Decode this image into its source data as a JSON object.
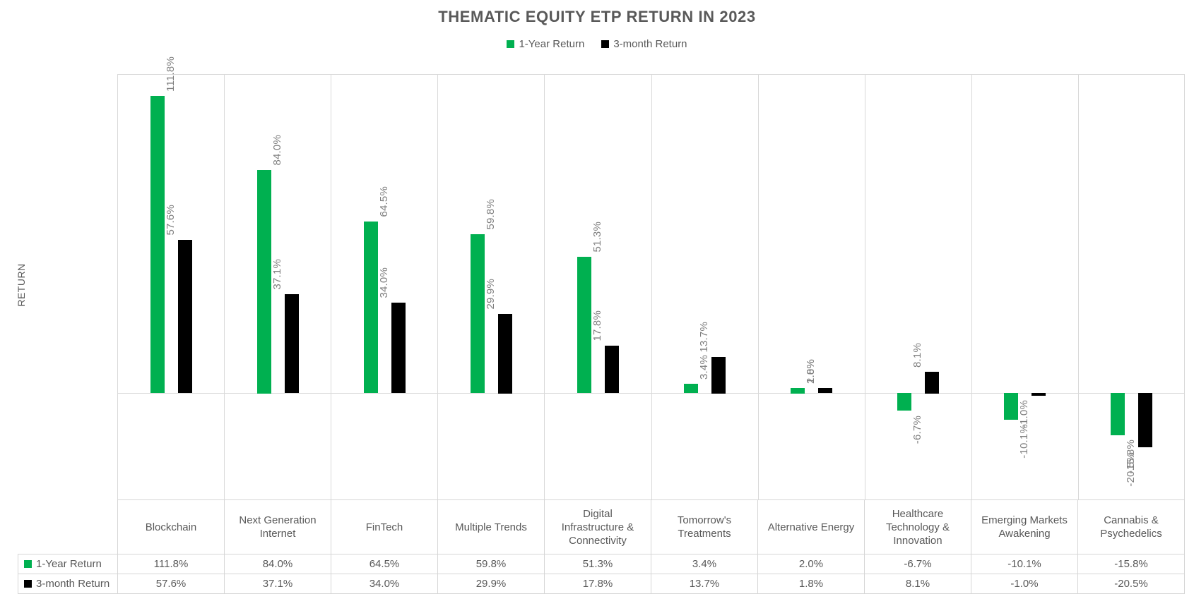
{
  "chart_data": {
    "type": "bar",
    "title": "THEMATIC EQUITY ETP RETURN IN 2023",
    "ylabel": "RETURN",
    "xlabel": "",
    "ylim": [
      -40,
      120
    ],
    "grid": "vertical category separators, top border and zero baseline only; no y tick labels shown",
    "legend_position": "top-center",
    "data_label_rotation": "90deg (reads bottom-to-top)",
    "categories": [
      "Blockchain",
      "Next Generation Internet",
      "FinTech",
      "Multiple Trends",
      "Digital Infrastructure & Connectivity",
      "Tomorrow's Treatments",
      "Alternative Energy",
      "Healthcare Technology & Innovation",
      "Emerging Markets Awakening",
      "Cannabis & Psychedelics"
    ],
    "series": [
      {
        "name": "1-Year Return",
        "color": "#00B050",
        "values": [
          111.8,
          84.0,
          64.5,
          59.8,
          51.3,
          3.4,
          2.0,
          -6.7,
          -10.1,
          -15.8
        ],
        "labels": [
          "111.8%",
          "84.0%",
          "64.5%",
          "59.8%",
          "51.3%",
          "3.4%",
          "2.0%",
          "-6.7%",
          "-10.1%",
          "-15.8%"
        ]
      },
      {
        "name": "3-month Return",
        "color": "#000000",
        "values": [
          57.6,
          37.1,
          34.0,
          29.9,
          17.8,
          13.7,
          1.8,
          8.1,
          -1.0,
          -20.5
        ],
        "labels": [
          "57.6%",
          "37.1%",
          "34.0%",
          "29.9%",
          "17.8%",
          "13.7%",
          "1.8%",
          "8.1%",
          "-1.0%",
          "-20.5%"
        ]
      }
    ],
    "data_table_shown": true
  },
  "colors": {
    "series1": "#00B050",
    "series2": "#000000",
    "gridline": "#D9D9D9",
    "table_border": "#D6D6D6",
    "title_text": "#595959",
    "axis_text": "#595959",
    "data_label_text": "#7F7F7F",
    "background": "#FFFFFF"
  }
}
